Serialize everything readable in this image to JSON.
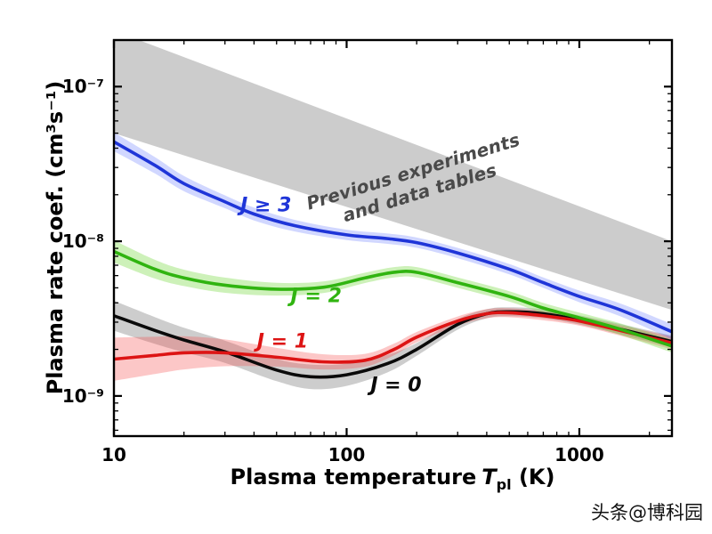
{
  "figure": {
    "watermark": "头条@博科园"
  },
  "chart_data": {
    "type": "line",
    "title": "",
    "x_scale": "log",
    "y_scale": "log",
    "xlim": [
      10,
      2500
    ],
    "ylim": [
      5.5e-10,
      2e-07
    ],
    "grid": false,
    "legend_position": "inline-labels",
    "xlabel": {
      "prefix": "Plasma temperature",
      "variable": "T",
      "subscript": "pl",
      "suffix": "(K)"
    },
    "ylabel": "Plasma rate coef. (cm³s⁻¹)",
    "x_ticks": [
      {
        "value": 10,
        "label": "10"
      },
      {
        "value": 100,
        "label": "100"
      },
      {
        "value": 1000,
        "label": "1000"
      }
    ],
    "y_ticks": [
      {
        "value": 1e-09,
        "label": "10⁻⁹"
      },
      {
        "value": 1e-08,
        "label": "10⁻⁸"
      },
      {
        "value": 1e-07,
        "label": "10⁻⁷"
      }
    ],
    "reference_band": {
      "label_lines": [
        "Previous experiments",
        "and data tables"
      ],
      "color": "rgba(200,200,200,0.92)",
      "label_color": "#4a4a4a",
      "x": [
        10,
        2500
      ],
      "upper": [
        2.3e-07,
        1e-08
      ],
      "lower": [
        5e-08,
        3.6e-09
      ],
      "label_anchor": {
        "x": 200,
        "y": 2.4e-08
      },
      "label_rotation_deg": -17
    },
    "series": [
      {
        "name": "J0",
        "label": "J = 0",
        "color": "#0a0a0a",
        "band_color": "rgba(90,90,90,0.30)",
        "x": [
          10,
          15,
          20,
          30,
          50,
          70,
          100,
          150,
          200,
          300,
          400,
          500,
          700,
          1000,
          1500,
          2500
        ],
        "y": [
          3.3e-09,
          2.65e-09,
          2.3e-09,
          1.93e-09,
          1.47e-09,
          1.33e-09,
          1.37e-09,
          1.62e-09,
          2e-09,
          2.9e-09,
          3.4e-09,
          3.5e-09,
          3.4e-09,
          3.1e-09,
          2.7e-09,
          2.25e-09
        ],
        "band": [
          1.25,
          1.22,
          1.2,
          1.18,
          1.18,
          1.2,
          1.18,
          1.14,
          1.1,
          1.08,
          1.07,
          1.07,
          1.07,
          1.07,
          1.08,
          1.09
        ],
        "label_anchor": {
          "x": 163,
          "y": 1.17e-09
        }
      },
      {
        "name": "J1",
        "label": "J = 1",
        "color": "#dd1414",
        "band_color": "rgba(245,70,70,0.30)",
        "x": [
          10,
          15,
          20,
          30,
          50,
          80,
          120,
          160,
          200,
          300,
          400,
          500,
          700,
          1000,
          1500,
          2500
        ],
        "y": [
          1.73e-09,
          1.83e-09,
          1.9e-09,
          1.9e-09,
          1.78e-09,
          1.66e-09,
          1.7e-09,
          2e-09,
          2.4e-09,
          3.05e-09,
          3.4e-09,
          3.45e-09,
          3.3e-09,
          3.05e-09,
          2.65e-09,
          2.2e-09
        ],
        "band": [
          1.38,
          1.32,
          1.28,
          1.22,
          1.15,
          1.12,
          1.1,
          1.09,
          1.08,
          1.07,
          1.07,
          1.07,
          1.07,
          1.07,
          1.08,
          1.1
        ],
        "label_anchor": {
          "x": 53,
          "y": 2.25e-09
        }
      },
      {
        "name": "J2",
        "label": "J = 2",
        "color": "#30b410",
        "band_color": "rgba(130,220,80,0.40)",
        "x": [
          10,
          15,
          20,
          30,
          50,
          80,
          120,
          160,
          200,
          300,
          500,
          700,
          1000,
          1500,
          2500
        ],
        "y": [
          8.6e-09,
          6.6e-09,
          5.8e-09,
          5.2e-09,
          4.9e-09,
          5.05e-09,
          5.8e-09,
          6.3e-09,
          6.3e-09,
          5.4e-09,
          4.4e-09,
          3.7e-09,
          3.2e-09,
          2.7e-09,
          2.1e-09
        ],
        "band": [
          1.18,
          1.15,
          1.13,
          1.12,
          1.1,
          1.09,
          1.08,
          1.08,
          1.08,
          1.08,
          1.08,
          1.08,
          1.08,
          1.09,
          1.1
        ],
        "label_anchor": {
          "x": 74,
          "y": 4.4e-09
        }
      },
      {
        "name": "J3plus",
        "label": "J ≥ 3",
        "color": "#1f35d8",
        "band_color": "rgba(70,95,255,0.25)",
        "x": [
          10,
          15,
          20,
          30,
          40,
          60,
          100,
          150,
          200,
          300,
          500,
          700,
          1000,
          1500,
          2500
        ],
        "y": [
          4.4e-08,
          3.1e-08,
          2.36e-08,
          1.8e-08,
          1.5e-08,
          1.26e-08,
          1.1e-08,
          1.04e-08,
          9.8e-09,
          8.4e-09,
          6.6e-09,
          5.4e-09,
          4.4e-09,
          3.6e-09,
          2.6e-09
        ],
        "band": [
          1.15,
          1.13,
          1.12,
          1.1,
          1.1,
          1.09,
          1.08,
          1.08,
          1.08,
          1.08,
          1.08,
          1.08,
          1.09,
          1.1,
          1.12
        ],
        "label_anchor": {
          "x": 45,
          "y": 1.7e-08
        }
      }
    ]
  }
}
